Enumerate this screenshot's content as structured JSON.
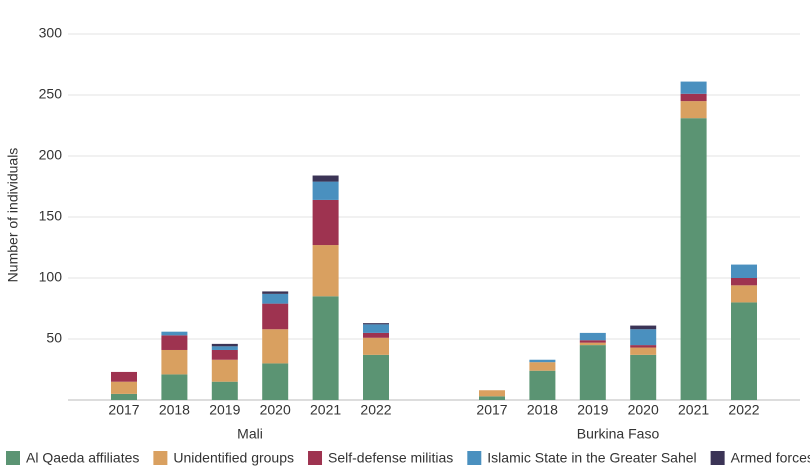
{
  "chart_data": {
    "type": "bar",
    "stacked": true,
    "y_label": "Number of individuals",
    "groups": [
      {
        "name": "Mali",
        "categories": [
          "2017",
          "2018",
          "2019",
          "2020",
          "2021",
          "2022"
        ]
      },
      {
        "name": "Burkina Faso",
        "categories": [
          "2017",
          "2018",
          "2019",
          "2020",
          "2021",
          "2022"
        ]
      }
    ],
    "series": [
      {
        "name": "Al Qaeda affiliates",
        "color": "#5b9473",
        "values": [
          5,
          21,
          15,
          30,
          85,
          37,
          3,
          24,
          45,
          37,
          231,
          80
        ]
      },
      {
        "name": "Unidentified groups",
        "color": "#d9a060",
        "values": [
          10,
          20,
          18,
          28,
          42,
          14,
          5,
          7,
          2,
          6,
          14,
          14
        ]
      },
      {
        "name": "Self-defense militias",
        "color": "#9e3350",
        "values": [
          8,
          12,
          8,
          21,
          37,
          4,
          0,
          0,
          2,
          2,
          6,
          6
        ]
      },
      {
        "name": "Islamic State in the Greater Sahel",
        "color": "#4a90bf",
        "values": [
          0,
          3,
          3,
          8,
          15,
          7,
          0,
          2,
          6,
          13,
          10,
          11
        ]
      },
      {
        "name": "Armed forces",
        "color": "#3b3456",
        "values": [
          0,
          0,
          2,
          2,
          5,
          1,
          0,
          0,
          0,
          3,
          0,
          0
        ]
      }
    ],
    "ylim": [
      0,
      300
    ],
    "yticks": [
      50,
      100,
      150,
      200,
      250,
      300
    ],
    "grid": true
  }
}
